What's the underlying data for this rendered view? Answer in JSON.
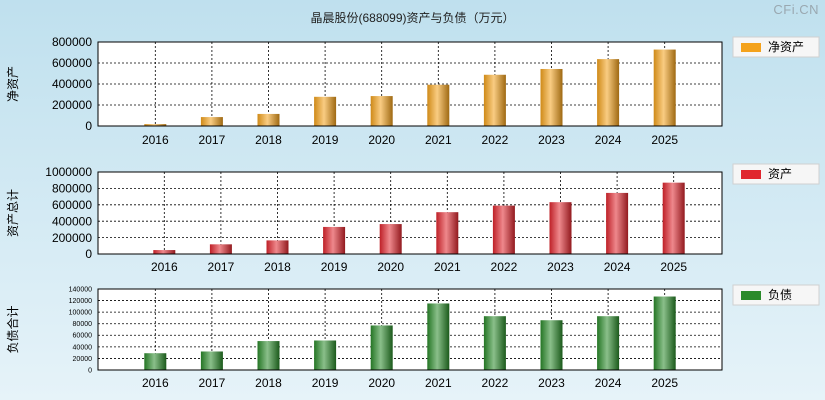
{
  "title": "晶晨股份(688099)资产与负债（万元）",
  "watermark": "CFi.CN",
  "chart_data": [
    {
      "type": "bar",
      "ylabel": "净资产",
      "legend": "净资产",
      "color": "#f4a21c",
      "categories": [
        "2016",
        "2017",
        "2018",
        "2019",
        "2020",
        "2021",
        "2022",
        "2023",
        "2024",
        "2025"
      ],
      "values": [
        18000,
        85000,
        115000,
        278000,
        285000,
        393000,
        488000,
        543000,
        637000,
        728000
      ],
      "ylim": [
        0,
        800000
      ],
      "yticks": [
        0,
        200000,
        400000,
        600000,
        800000
      ],
      "ytick_labels": [
        "0",
        "200000",
        "400000",
        "600000",
        "800000"
      ],
      "grid": true
    },
    {
      "type": "bar",
      "ylabel": "资产总计",
      "legend": "资产",
      "color": "#e0262e",
      "categories": [
        "2016",
        "2017",
        "2018",
        "2019",
        "2020",
        "2021",
        "2022",
        "2023",
        "2024",
        "2025"
      ],
      "values": [
        48000,
        118000,
        166000,
        330000,
        365000,
        510000,
        590000,
        632000,
        745000,
        870000
      ],
      "ylim": [
        0,
        1000000
      ],
      "yticks": [
        0,
        200000,
        400000,
        600000,
        800000,
        1000000
      ],
      "ytick_labels": [
        "0",
        "200000",
        "400000",
        "600000",
        "800000",
        "1000000"
      ],
      "grid": true
    },
    {
      "type": "bar",
      "ylabel": "负债合计",
      "legend": "负债",
      "color": "#2a8a2a",
      "categories": [
        "2016",
        "2017",
        "2018",
        "2019",
        "2020",
        "2021",
        "2022",
        "2023",
        "2024",
        "2025"
      ],
      "values": [
        29000,
        32000,
        50000,
        51000,
        77000,
        115000,
        93000,
        86000,
        93000,
        127000
      ],
      "ylim": [
        0,
        140000
      ],
      "yticks": [
        0,
        20000,
        40000,
        60000,
        80000,
        100000,
        120000,
        140000
      ],
      "ytick_labels": [
        "0",
        "20000",
        "40000",
        "60000",
        "80000",
        "100000",
        "120000",
        "140000"
      ],
      "grid": true
    }
  ]
}
